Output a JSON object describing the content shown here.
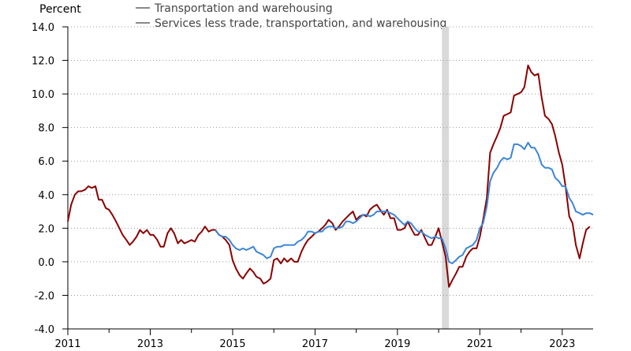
{
  "chart_data": {
    "type": "line",
    "ylabel": "Percent",
    "ylim": [
      -4,
      14
    ],
    "yticks": [
      -4,
      -2,
      0,
      2,
      4,
      6,
      8,
      10,
      12,
      14
    ],
    "ytick_labels": [
      "-4.0",
      "-2.0",
      "0.0",
      "2.0",
      "4.0",
      "6.0",
      "8.0",
      "10.0",
      "12.0",
      "14.0"
    ],
    "xlim": [
      2011.0,
      2023.75
    ],
    "xticks": [
      2011,
      2013,
      2015,
      2017,
      2019,
      2021,
      2023
    ],
    "xtick_labels": [
      "2011",
      "2013",
      "2015",
      "2017",
      "2019",
      "2021",
      "2023"
    ],
    "grid": "horizontal dotted",
    "recession_band": [
      2020.08,
      2020.25
    ],
    "legend_entries": [
      {
        "label": "Transportation and warehousing",
        "color": "#8c8c8c"
      },
      {
        "label": "Services less trade, transportation, and warehousing",
        "color": "#8c8c8c"
      }
    ],
    "series": [
      {
        "color": "#8b0000",
        "points": [
          [
            2011.0,
            2.4
          ],
          [
            2011.08,
            3.4
          ],
          [
            2011.17,
            4.0
          ],
          [
            2011.25,
            4.2
          ],
          [
            2011.33,
            4.2
          ],
          [
            2011.42,
            4.3
          ],
          [
            2011.5,
            4.5
          ],
          [
            2011.58,
            4.4
          ],
          [
            2011.67,
            4.5
          ],
          [
            2011.75,
            3.7
          ],
          [
            2011.83,
            3.7
          ],
          [
            2011.92,
            3.2
          ],
          [
            2012.0,
            3.1
          ],
          [
            2012.08,
            2.8
          ],
          [
            2012.17,
            2.4
          ],
          [
            2012.25,
            2.0
          ],
          [
            2012.33,
            1.6
          ],
          [
            2012.42,
            1.3
          ],
          [
            2012.5,
            1.0
          ],
          [
            2012.58,
            1.2
          ],
          [
            2012.67,
            1.5
          ],
          [
            2012.75,
            1.9
          ],
          [
            2012.83,
            1.7
          ],
          [
            2012.92,
            1.9
          ],
          [
            2013.0,
            1.6
          ],
          [
            2013.08,
            1.6
          ],
          [
            2013.17,
            1.3
          ],
          [
            2013.25,
            0.9
          ],
          [
            2013.33,
            0.9
          ],
          [
            2013.42,
            1.7
          ],
          [
            2013.5,
            2.0
          ],
          [
            2013.58,
            1.7
          ],
          [
            2013.67,
            1.1
          ],
          [
            2013.75,
            1.3
          ],
          [
            2013.83,
            1.1
          ],
          [
            2013.92,
            1.2
          ],
          [
            2014.0,
            1.3
          ],
          [
            2014.08,
            1.2
          ],
          [
            2014.17,
            1.6
          ],
          [
            2014.25,
            1.8
          ],
          [
            2014.33,
            2.1
          ],
          [
            2014.42,
            1.8
          ],
          [
            2014.5,
            1.9
          ],
          [
            2014.58,
            1.9
          ],
          [
            2014.67,
            1.6
          ],
          [
            2014.75,
            1.5
          ],
          [
            2014.83,
            1.3
          ],
          [
            2014.92,
            1.0
          ],
          [
            2015.0,
            0.1
          ],
          [
            2015.08,
            -0.4
          ],
          [
            2015.17,
            -0.8
          ],
          [
            2015.25,
            -1.0
          ],
          [
            2015.33,
            -0.7
          ],
          [
            2015.42,
            -0.4
          ],
          [
            2015.5,
            -0.6
          ],
          [
            2015.58,
            -0.9
          ],
          [
            2015.67,
            -1.0
          ],
          [
            2015.75,
            -1.3
          ],
          [
            2015.83,
            -1.2
          ],
          [
            2015.92,
            -1.0
          ],
          [
            2016.0,
            0.1
          ],
          [
            2016.08,
            0.2
          ],
          [
            2016.17,
            -0.1
          ],
          [
            2016.25,
            0.2
          ],
          [
            2016.33,
            0.0
          ],
          [
            2016.42,
            0.2
          ],
          [
            2016.5,
            0.0
          ],
          [
            2016.58,
            0.0
          ],
          [
            2016.67,
            0.6
          ],
          [
            2016.75,
            1.0
          ],
          [
            2016.83,
            1.3
          ],
          [
            2016.92,
            1.5
          ],
          [
            2017.0,
            1.7
          ],
          [
            2017.08,
            1.8
          ],
          [
            2017.17,
            2.0
          ],
          [
            2017.25,
            2.2
          ],
          [
            2017.33,
            2.5
          ],
          [
            2017.42,
            2.3
          ],
          [
            2017.5,
            1.9
          ],
          [
            2017.58,
            2.1
          ],
          [
            2017.67,
            2.4
          ],
          [
            2017.75,
            2.6
          ],
          [
            2017.83,
            2.8
          ],
          [
            2017.92,
            3.0
          ],
          [
            2018.0,
            2.5
          ],
          [
            2018.08,
            2.7
          ],
          [
            2018.17,
            2.8
          ],
          [
            2018.25,
            2.7
          ],
          [
            2018.33,
            3.1
          ],
          [
            2018.42,
            3.3
          ],
          [
            2018.5,
            3.4
          ],
          [
            2018.58,
            3.1
          ],
          [
            2018.67,
            2.8
          ],
          [
            2018.75,
            3.1
          ],
          [
            2018.83,
            2.6
          ],
          [
            2018.92,
            2.6
          ],
          [
            2019.0,
            1.9
          ],
          [
            2019.08,
            1.9
          ],
          [
            2019.17,
            2.0
          ],
          [
            2019.25,
            2.4
          ],
          [
            2019.33,
            2.0
          ],
          [
            2019.42,
            1.6
          ],
          [
            2019.5,
            1.6
          ],
          [
            2019.58,
            1.9
          ],
          [
            2019.67,
            1.4
          ],
          [
            2019.75,
            1.0
          ],
          [
            2019.83,
            1.0
          ],
          [
            2019.92,
            1.5
          ],
          [
            2020.0,
            2.0
          ],
          [
            2020.08,
            1.2
          ],
          [
            2020.17,
            0.3
          ],
          [
            2020.25,
            -1.5
          ],
          [
            2020.33,
            -1.1
          ],
          [
            2020.42,
            -0.7
          ],
          [
            2020.5,
            -0.3
          ],
          [
            2020.58,
            -0.3
          ],
          [
            2020.67,
            0.3
          ],
          [
            2020.75,
            0.6
          ],
          [
            2020.83,
            0.8
          ],
          [
            2020.92,
            0.8
          ],
          [
            2021.0,
            1.5
          ],
          [
            2021.08,
            2.5
          ],
          [
            2021.17,
            3.8
          ],
          [
            2021.25,
            6.5
          ],
          [
            2021.33,
            7.0
          ],
          [
            2021.42,
            7.5
          ],
          [
            2021.5,
            8.0
          ],
          [
            2021.58,
            8.7
          ],
          [
            2021.67,
            8.8
          ],
          [
            2021.75,
            8.9
          ],
          [
            2021.83,
            9.9
          ],
          [
            2021.92,
            10.0
          ],
          [
            2022.0,
            10.1
          ],
          [
            2022.08,
            10.4
          ],
          [
            2022.17,
            11.7
          ],
          [
            2022.25,
            11.3
          ],
          [
            2022.33,
            11.1
          ],
          [
            2022.42,
            11.2
          ],
          [
            2022.5,
            9.8
          ],
          [
            2022.58,
            8.7
          ],
          [
            2022.67,
            8.5
          ],
          [
            2022.75,
            8.2
          ],
          [
            2022.83,
            7.5
          ],
          [
            2022.92,
            6.5
          ],
          [
            2023.0,
            5.8
          ],
          [
            2023.08,
            4.5
          ],
          [
            2023.17,
            2.7
          ],
          [
            2023.25,
            2.3
          ],
          [
            2023.33,
            1.0
          ],
          [
            2023.42,
            0.2
          ],
          [
            2023.5,
            1.1
          ],
          [
            2023.58,
            1.9
          ],
          [
            2023.67,
            2.1
          ]
        ]
      },
      {
        "color": "#3b86d6",
        "points": [
          [
            2014.58,
            1.9
          ],
          [
            2014.67,
            1.6
          ],
          [
            2014.75,
            1.5
          ],
          [
            2014.83,
            1.5
          ],
          [
            2014.92,
            1.3
          ],
          [
            2015.0,
            1.0
          ],
          [
            2015.08,
            0.8
          ],
          [
            2015.17,
            0.7
          ],
          [
            2015.25,
            0.8
          ],
          [
            2015.33,
            0.7
          ],
          [
            2015.42,
            0.8
          ],
          [
            2015.5,
            0.9
          ],
          [
            2015.58,
            0.6
          ],
          [
            2015.67,
            0.5
          ],
          [
            2015.75,
            0.4
          ],
          [
            2015.83,
            0.2
          ],
          [
            2015.92,
            0.3
          ],
          [
            2016.0,
            0.8
          ],
          [
            2016.08,
            0.9
          ],
          [
            2016.17,
            0.9
          ],
          [
            2016.25,
            1.0
          ],
          [
            2016.33,
            1.0
          ],
          [
            2016.42,
            1.0
          ],
          [
            2016.5,
            1.0
          ],
          [
            2016.58,
            1.2
          ],
          [
            2016.67,
            1.3
          ],
          [
            2016.75,
            1.5
          ],
          [
            2016.83,
            1.8
          ],
          [
            2016.92,
            1.8
          ],
          [
            2017.0,
            1.7
          ],
          [
            2017.08,
            1.8
          ],
          [
            2017.17,
            1.8
          ],
          [
            2017.25,
            2.0
          ],
          [
            2017.33,
            2.1
          ],
          [
            2017.42,
            2.1
          ],
          [
            2017.5,
            2.0
          ],
          [
            2017.58,
            2.0
          ],
          [
            2017.67,
            2.1
          ],
          [
            2017.75,
            2.4
          ],
          [
            2017.83,
            2.4
          ],
          [
            2017.92,
            2.3
          ],
          [
            2018.0,
            2.4
          ],
          [
            2018.08,
            2.6
          ],
          [
            2018.17,
            2.8
          ],
          [
            2018.25,
            2.8
          ],
          [
            2018.33,
            2.7
          ],
          [
            2018.42,
            2.8
          ],
          [
            2018.5,
            3.0
          ],
          [
            2018.58,
            3.0
          ],
          [
            2018.67,
            3.0
          ],
          [
            2018.75,
            3.0
          ],
          [
            2018.83,
            2.9
          ],
          [
            2018.92,
            2.8
          ],
          [
            2019.0,
            2.6
          ],
          [
            2019.08,
            2.4
          ],
          [
            2019.17,
            2.2
          ],
          [
            2019.25,
            2.4
          ],
          [
            2019.33,
            2.3
          ],
          [
            2019.42,
            2.0
          ],
          [
            2019.5,
            1.8
          ],
          [
            2019.58,
            1.8
          ],
          [
            2019.67,
            1.6
          ],
          [
            2019.75,
            1.5
          ],
          [
            2019.83,
            1.4
          ],
          [
            2019.92,
            1.5
          ],
          [
            2020.0,
            1.4
          ],
          [
            2020.08,
            1.4
          ],
          [
            2020.17,
            0.8
          ],
          [
            2020.25,
            0.0
          ],
          [
            2020.33,
            -0.1
          ],
          [
            2020.42,
            0.1
          ],
          [
            2020.5,
            0.3
          ],
          [
            2020.58,
            0.4
          ],
          [
            2020.67,
            0.8
          ],
          [
            2020.75,
            0.9
          ],
          [
            2020.83,
            1.0
          ],
          [
            2020.92,
            1.3
          ],
          [
            2021.0,
            2.0
          ],
          [
            2021.08,
            2.3
          ],
          [
            2021.17,
            3.3
          ],
          [
            2021.25,
            4.8
          ],
          [
            2021.33,
            5.3
          ],
          [
            2021.42,
            5.6
          ],
          [
            2021.5,
            6.0
          ],
          [
            2021.58,
            6.2
          ],
          [
            2021.67,
            6.1
          ],
          [
            2021.75,
            6.2
          ],
          [
            2021.83,
            7.0
          ],
          [
            2021.92,
            7.0
          ],
          [
            2022.0,
            6.9
          ],
          [
            2022.08,
            6.7
          ],
          [
            2022.17,
            7.1
          ],
          [
            2022.25,
            6.8
          ],
          [
            2022.33,
            6.8
          ],
          [
            2022.42,
            6.4
          ],
          [
            2022.5,
            5.8
          ],
          [
            2022.58,
            5.6
          ],
          [
            2022.67,
            5.6
          ],
          [
            2022.75,
            5.5
          ],
          [
            2022.83,
            5.0
          ],
          [
            2022.92,
            4.8
          ],
          [
            2023.0,
            4.5
          ],
          [
            2023.08,
            4.5
          ],
          [
            2023.17,
            3.8
          ],
          [
            2023.25,
            3.5
          ],
          [
            2023.33,
            3.0
          ],
          [
            2023.42,
            2.9
          ],
          [
            2023.5,
            2.8
          ],
          [
            2023.58,
            2.9
          ],
          [
            2023.67,
            2.9
          ],
          [
            2023.75,
            2.8
          ]
        ]
      }
    ]
  }
}
